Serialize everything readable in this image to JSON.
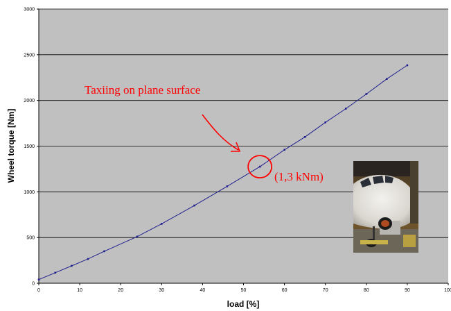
{
  "chart_data": {
    "type": "line",
    "xlabel": "load [%]",
    "ylabel": "Wheel torque [Nm]",
    "xlim": [
      0,
      100
    ],
    "ylim": [
      0,
      3000
    ],
    "x_ticks": [
      0,
      10,
      20,
      30,
      40,
      50,
      60,
      70,
      80,
      90,
      100
    ],
    "y_ticks": [
      0,
      500,
      1000,
      1500,
      2000,
      2500,
      3000
    ],
    "grid": "horizontal",
    "plot_background": "#c0c0c0",
    "series": [
      {
        "color": "#1f1f8f",
        "x": [
          0,
          4,
          8,
          12,
          16,
          24,
          30,
          38,
          46,
          54,
          60,
          65,
          70,
          75,
          80,
          85,
          90
        ],
        "y": [
          40,
          115,
          190,
          265,
          350,
          510,
          650,
          850,
          1060,
          1275,
          1460,
          1600,
          1760,
          1910,
          2070,
          2235,
          2385
        ]
      }
    ],
    "annotations": {
      "caption": "Taxiing on plane surface",
      "value_label": "(1,3 kNm)",
      "highlight_x": 54,
      "highlight_y": 1275,
      "color": "#ff0000"
    },
    "inset_photo": "airplane-nose-photo"
  }
}
